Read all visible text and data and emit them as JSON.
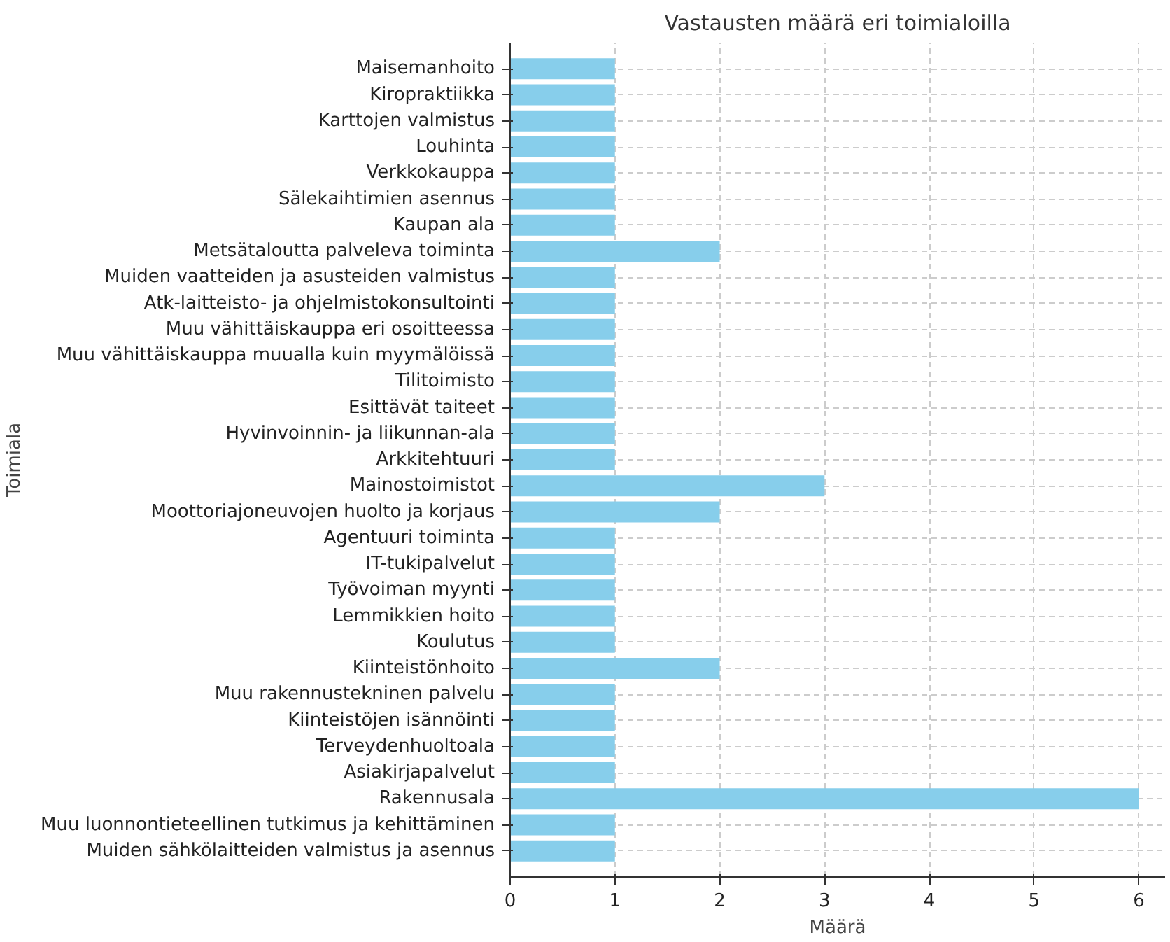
{
  "chart_data": {
    "type": "bar",
    "orientation": "horizontal",
    "title": "Vastausten määrä eri toimialoilla",
    "xlabel": "Määrä",
    "ylabel": "Toimiala",
    "categories": [
      "Maisemanhoito",
      "Kiropraktiikka",
      "Karttojen valmistus",
      "Louhinta",
      "Verkkokauppa",
      "Sälekaihtimien asennus",
      "Kaupan ala",
      "Metsätaloutta palveleva toiminta",
      "Muiden vaatteiden ja asusteiden valmistus",
      "Atk-laitteisto- ja ohjelmistokonsultointi",
      "Muu vähittäiskauppa eri osoitteessa",
      "Muu vähittäiskauppa muualla kuin myymälöissä",
      "Tilitoimisto",
      "Esittävät taiteet",
      "Hyvinvoinnin- ja liikunnan-ala",
      "Arkkitehtuuri",
      "Mainostoimistot",
      "Moottoriajoneuvojen huolto ja korjaus",
      "Agentuuri toiminta",
      "IT-tukipalvelut",
      "Työvoiman myynti",
      "Lemmikkien hoito",
      "Koulutus",
      "Kiinteistönhoito",
      "Muu rakennustekninen palvelu",
      "Kiinteistöjen isännöinti",
      "Terveydenhuoltoala",
      "Asiakirjapalvelut",
      "Rakennusala",
      "Muu luonnontieteellinen tutkimus ja kehittäminen",
      "Muiden sähkölaitteiden valmistus ja asennus"
    ],
    "values": [
      1,
      1,
      1,
      1,
      1,
      1,
      1,
      2,
      1,
      1,
      1,
      1,
      1,
      1,
      1,
      1,
      3,
      2,
      1,
      1,
      1,
      1,
      1,
      2,
      1,
      1,
      1,
      1,
      6,
      1,
      1
    ],
    "color": "#87ceeb",
    "xlim": [
      0,
      6.25
    ],
    "xticks": [
      0,
      1,
      2,
      3,
      4,
      5,
      6
    ],
    "grid": true
  }
}
